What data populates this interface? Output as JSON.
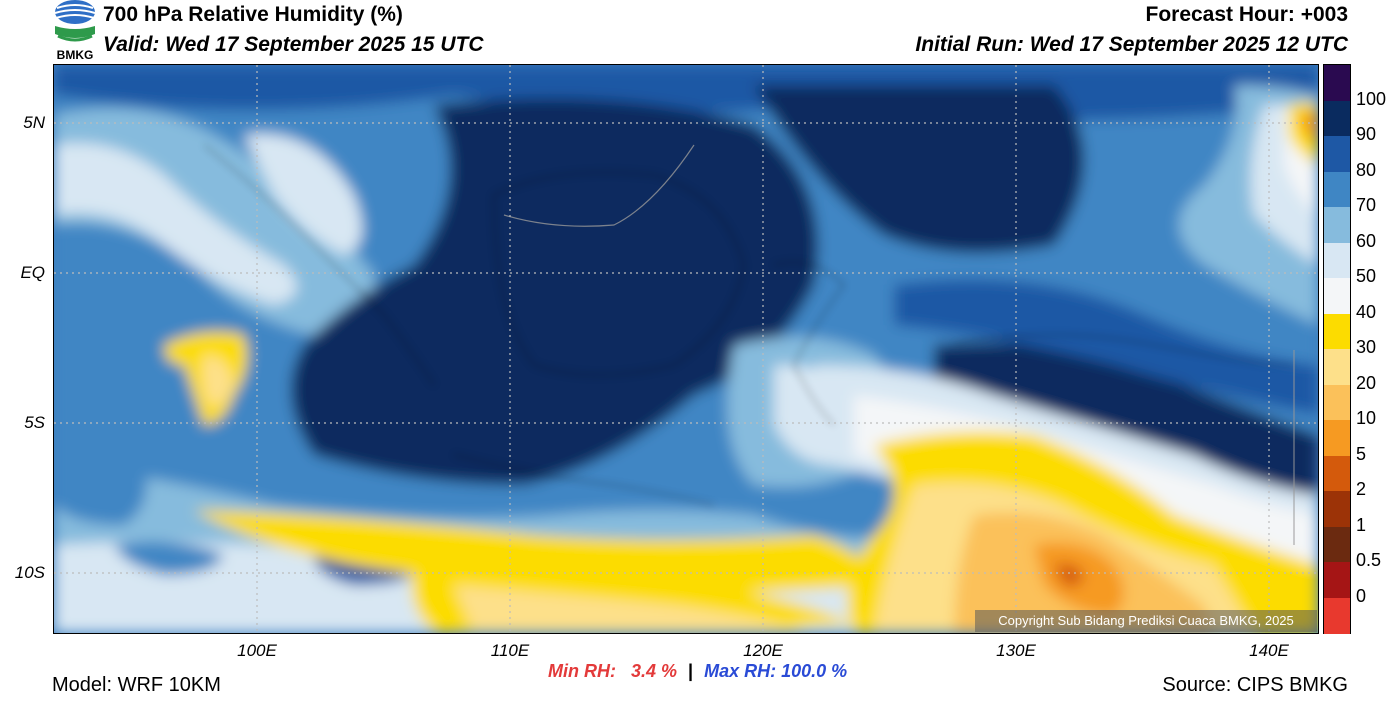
{
  "header": {
    "title": "700 hPa Relative Humidity (%)",
    "valid": "Valid: Wed 17 September 2025 15 UTC",
    "forecast_hour": "Forecast Hour: +003",
    "initial_run": "Initial Run: Wed 17 September 2025 12 UTC"
  },
  "logo": {
    "text": "BMKG",
    "icon": "bmkg-logo-icon"
  },
  "map": {
    "lat_labels": [
      "5N",
      "EQ",
      "5S",
      "10S"
    ],
    "lon_labels": [
      "100E",
      "110E",
      "120E",
      "130E",
      "140E"
    ],
    "grid": true,
    "copyright": "Copyright Sub Bidang Prediksi Cuaca BMKG, 2025"
  },
  "colorbar": {
    "labels": [
      "100",
      "90",
      "80",
      "70",
      "60",
      "50",
      "40",
      "30",
      "20",
      "10",
      "5",
      "2",
      "1",
      "0.5",
      "0"
    ],
    "colors": [
      "#2a0a50",
      "#0a2b5f",
      "#1e58a5",
      "#3f86c4",
      "#86bbdd",
      "#d8e7f3",
      "#f4f6f8",
      "#fcdc00",
      "#fde08a",
      "#fbc15a",
      "#f69a22",
      "#d45a0c",
      "#9c3307",
      "#6b2a10",
      "#a51515",
      "#e8392e"
    ]
  },
  "footer": {
    "min_label": "Min RH:",
    "min_value": "3.4 %",
    "separator": "|",
    "max_label": "Max RH:",
    "max_value": "100.0 %",
    "model": "Model: WRF 10KM",
    "source": "Source: CIPS BMKG"
  }
}
